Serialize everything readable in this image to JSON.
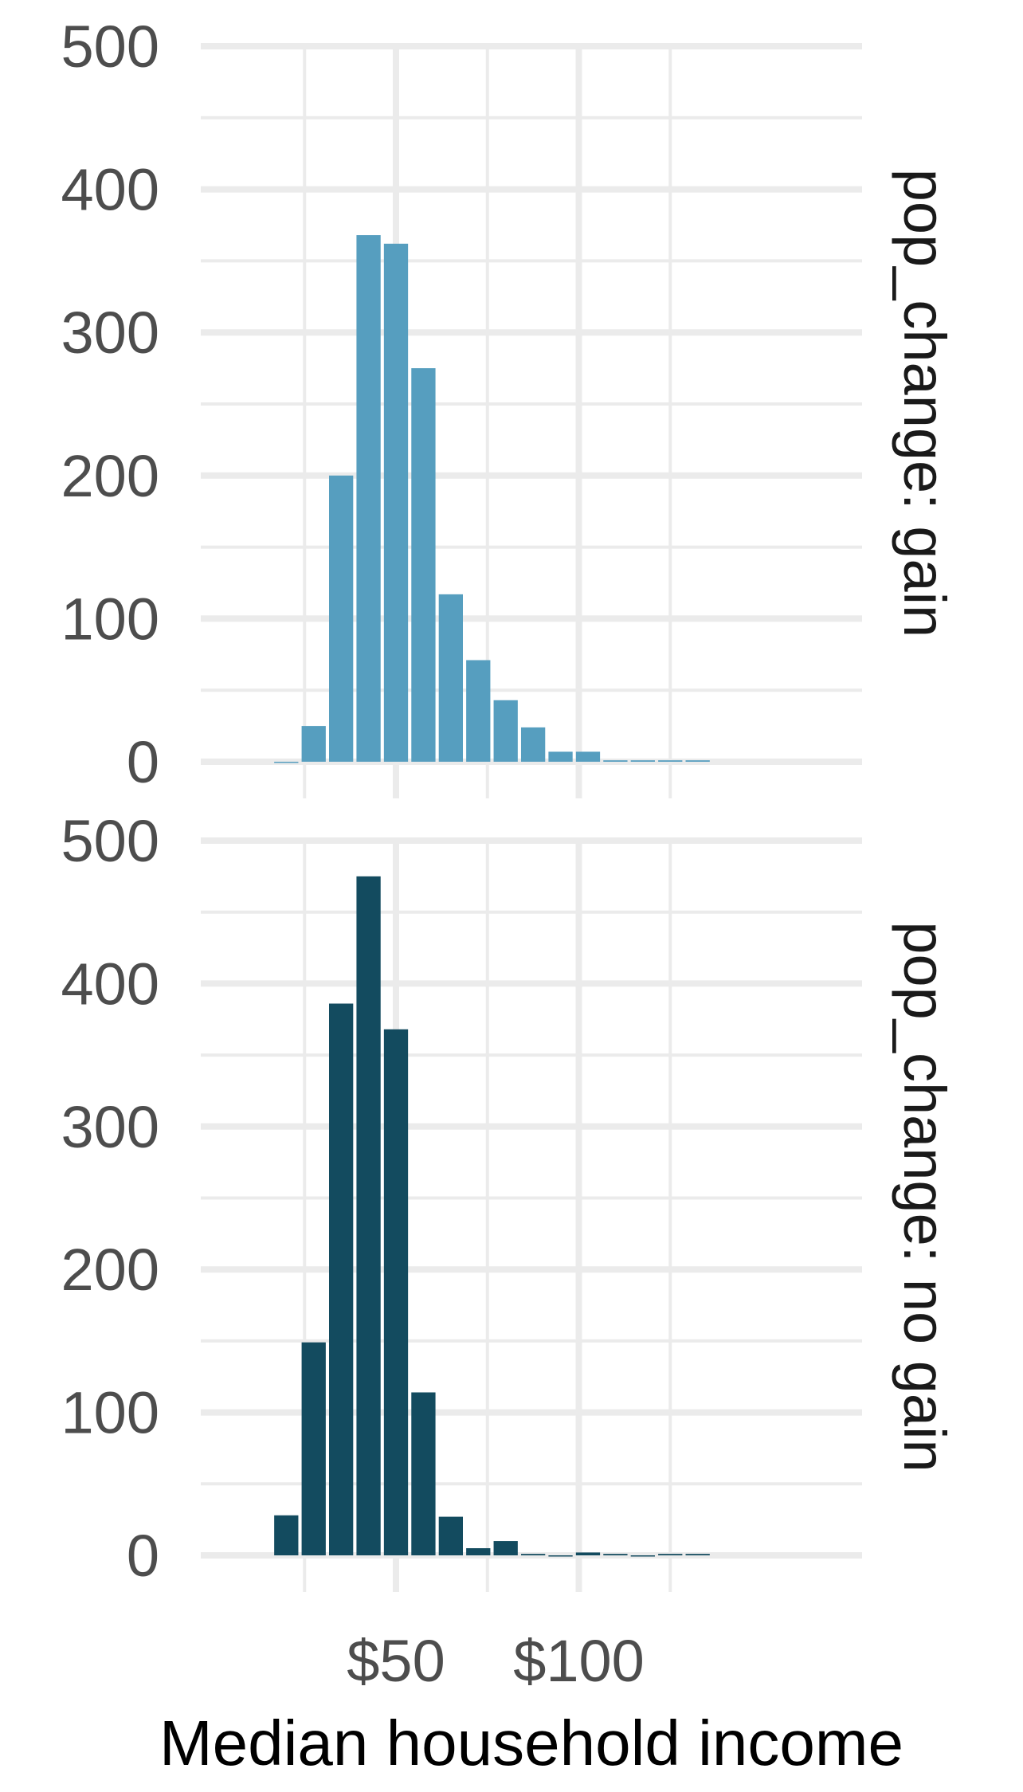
{
  "chart_data": {
    "type": "bar",
    "xlabel": "Median household income",
    "ylabel": "",
    "x_unit_prefix": "$",
    "xlim": [
      15,
      140
    ],
    "ylim": [
      0,
      500
    ],
    "x_tick_values": [
      25,
      50,
      75,
      100,
      125
    ],
    "x_tick_labels": [
      {
        "value": 50,
        "label": "$50"
      },
      {
        "value": 100,
        "label": "$100"
      }
    ],
    "y_ticks": [
      0,
      100,
      200,
      300,
      400,
      500
    ],
    "bin_width": 7.5,
    "bin_centers": [
      20,
      27.5,
      35,
      42.5,
      50,
      57.5,
      65,
      72.5,
      80,
      87.5,
      95,
      102.5,
      110,
      117.5,
      125,
      132.5
    ],
    "grid": true,
    "legend": "none",
    "panels": [
      {
        "label": "pop_change: gain",
        "color": "#569ebf",
        "counts": [
          0,
          25,
          200,
          368,
          362,
          275,
          117,
          71,
          43,
          24,
          7,
          7,
          1,
          1,
          1,
          1
        ]
      },
      {
        "label": "pop_change: no gain",
        "color": "#134b5f",
        "counts": [
          28,
          149,
          386,
          475,
          368,
          114,
          27,
          5,
          10,
          1,
          0,
          2,
          1,
          0,
          1,
          1
        ]
      }
    ]
  }
}
